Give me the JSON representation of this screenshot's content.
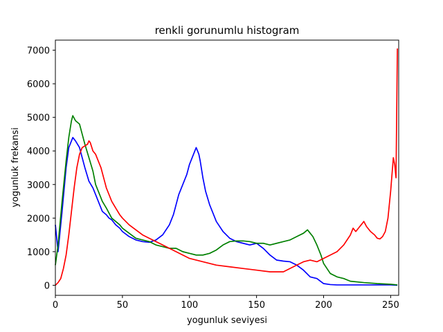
{
  "chart_data": {
    "type": "line",
    "title": "renkli gorunumlu histogram",
    "xlabel": "yogunluk seviyesi",
    "ylabel": "yogunluk frekansi",
    "xlim": [
      0,
      256
    ],
    "ylim": [
      -300,
      7300
    ],
    "xticks": [
      0,
      50,
      100,
      150,
      200,
      250
    ],
    "yticks": [
      0,
      1000,
      2000,
      3000,
      4000,
      5000,
      6000,
      7000
    ],
    "grid": false,
    "series": [
      {
        "color": "#0000ff",
        "x": [
          0,
          2,
          5,
          8,
          10,
          12,
          13,
          15,
          18,
          20,
          22,
          25,
          28,
          30,
          33,
          35,
          38,
          40,
          42,
          45,
          48,
          50,
          55,
          60,
          65,
          70,
          75,
          80,
          85,
          88,
          90,
          92,
          95,
          98,
          100,
          102,
          104,
          105,
          106,
          107,
          108,
          110,
          112,
          115,
          118,
          120,
          125,
          130,
          135,
          140,
          145,
          150,
          155,
          160,
          165,
          170,
          175,
          180,
          185,
          190,
          195,
          200,
          205,
          210,
          220,
          230,
          240,
          250,
          255
        ],
        "values": [
          1800,
          1000,
          2200,
          3500,
          4100,
          4300,
          4400,
          4300,
          4100,
          3800,
          3500,
          3100,
          2900,
          2700,
          2400,
          2200,
          2100,
          2000,
          1950,
          1800,
          1700,
          1600,
          1450,
          1350,
          1300,
          1280,
          1350,
          1500,
          1800,
          2100,
          2400,
          2700,
          3000,
          3300,
          3600,
          3800,
          4000,
          4100,
          4000,
          3900,
          3700,
          3200,
          2800,
          2400,
          2100,
          1900,
          1600,
          1400,
          1300,
          1250,
          1200,
          1250,
          1100,
          900,
          750,
          720,
          700,
          600,
          450,
          250,
          200,
          50,
          20,
          10,
          10,
          10,
          10,
          10,
          0
        ]
      },
      {
        "color": "#008000",
        "x": [
          0,
          2,
          5,
          8,
          10,
          12,
          13,
          15,
          18,
          20,
          22,
          25,
          28,
          30,
          33,
          35,
          38,
          40,
          42,
          45,
          48,
          50,
          55,
          60,
          65,
          70,
          75,
          80,
          85,
          90,
          95,
          100,
          105,
          110,
          115,
          120,
          125,
          130,
          135,
          140,
          145,
          150,
          155,
          160,
          165,
          170,
          175,
          180,
          185,
          188,
          190,
          192,
          195,
          198,
          200,
          205,
          210,
          215,
          220,
          230,
          240,
          250,
          255
        ],
        "values": [
          600,
          1200,
          2500,
          3700,
          4400,
          4900,
          5050,
          4900,
          4800,
          4500,
          4200,
          3800,
          3400,
          3000,
          2700,
          2500,
          2300,
          2150,
          2000,
          1900,
          1800,
          1700,
          1550,
          1400,
          1350,
          1300,
          1200,
          1150,
          1100,
          1100,
          1000,
          950,
          900,
          900,
          950,
          1050,
          1200,
          1300,
          1320,
          1320,
          1300,
          1250,
          1250,
          1200,
          1250,
          1300,
          1350,
          1450,
          1550,
          1650,
          1550,
          1450,
          1200,
          900,
          650,
          350,
          250,
          200,
          120,
          80,
          50,
          30,
          10
        ]
      },
      {
        "color": "#ff0000",
        "x": [
          0,
          2,
          4,
          6,
          8,
          10,
          12,
          14,
          16,
          18,
          20,
          22,
          24,
          25,
          26,
          28,
          30,
          32,
          34,
          36,
          38,
          40,
          42,
          45,
          48,
          50,
          55,
          60,
          65,
          70,
          75,
          80,
          85,
          90,
          95,
          100,
          110,
          120,
          130,
          140,
          150,
          160,
          170,
          175,
          180,
          185,
          190,
          195,
          200,
          205,
          210,
          215,
          220,
          222,
          224,
          226,
          228,
          230,
          232,
          235,
          238,
          240,
          242,
          244,
          246,
          248,
          250,
          252,
          253,
          254,
          255
        ],
        "values": [
          0,
          80,
          200,
          500,
          900,
          1500,
          2200,
          2900,
          3500,
          3900,
          4100,
          4150,
          4200,
          4300,
          4250,
          4000,
          3900,
          3700,
          3500,
          3200,
          2900,
          2700,
          2500,
          2300,
          2100,
          2000,
          1800,
          1650,
          1500,
          1400,
          1300,
          1200,
          1100,
          1000,
          900,
          800,
          700,
          600,
          550,
          500,
          450,
          400,
          400,
          500,
          600,
          700,
          750,
          700,
          800,
          900,
          1000,
          1200,
          1500,
          1700,
          1600,
          1700,
          1800,
          1900,
          1750,
          1600,
          1500,
          1400,
          1380,
          1450,
          1600,
          2000,
          2800,
          3800,
          3600,
          3200,
          7050
        ]
      }
    ]
  }
}
